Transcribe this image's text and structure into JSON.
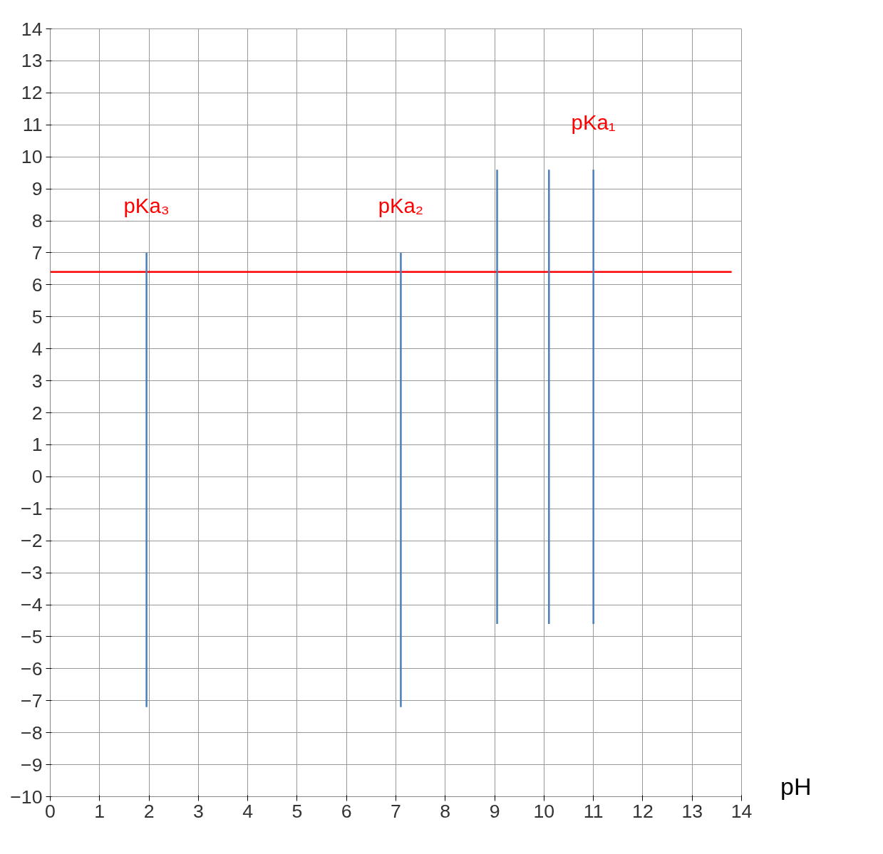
{
  "chart_data": {
    "type": "line",
    "xlabel": "pH",
    "xlim": [
      0,
      14
    ],
    "ylim": [
      -10,
      14
    ],
    "xticks": [
      0,
      1,
      2,
      3,
      4,
      5,
      6,
      7,
      8,
      9,
      10,
      11,
      12,
      13,
      14
    ],
    "yticks": [
      -10,
      -9,
      -8,
      -7,
      -6,
      -5,
      -4,
      -3,
      -2,
      -1,
      0,
      1,
      2,
      3,
      4,
      5,
      6,
      7,
      8,
      9,
      10,
      11,
      12,
      13,
      14
    ],
    "grid": true,
    "marker": "none",
    "line_style": "solid",
    "series": [
      {
        "color": "#ff0000",
        "x": [
          0,
          13.8
        ],
        "values": [
          6.4,
          6.4
        ]
      },
      {
        "color": "#4a7ebb",
        "x": [
          1.95,
          1.95
        ],
        "values": [
          -7.2,
          7.0
        ]
      },
      {
        "color": "#4a7ebb",
        "x": [
          7.1,
          7.1
        ],
        "values": [
          -7.2,
          7.0
        ]
      },
      {
        "color": "#4a7ebb",
        "x": [
          9.05,
          9.05
        ],
        "values": [
          -4.6,
          9.6
        ]
      },
      {
        "color": "#4a7ebb",
        "x": [
          10.1,
          10.1
        ],
        "values": [
          -4.6,
          9.6
        ]
      },
      {
        "color": "#4a7ebb",
        "x": [
          11.0,
          11.0
        ],
        "values": [
          -4.6,
          9.6
        ]
      }
    ],
    "annotations": [
      {
        "text": "pKa₃",
        "x": 1.95,
        "y": 7.0
      },
      {
        "text": "pKa₂",
        "x": 7.1,
        "y": 7.0
      },
      {
        "text": "pKa₁",
        "x": 11.0,
        "y": 9.6
      }
    ]
  }
}
